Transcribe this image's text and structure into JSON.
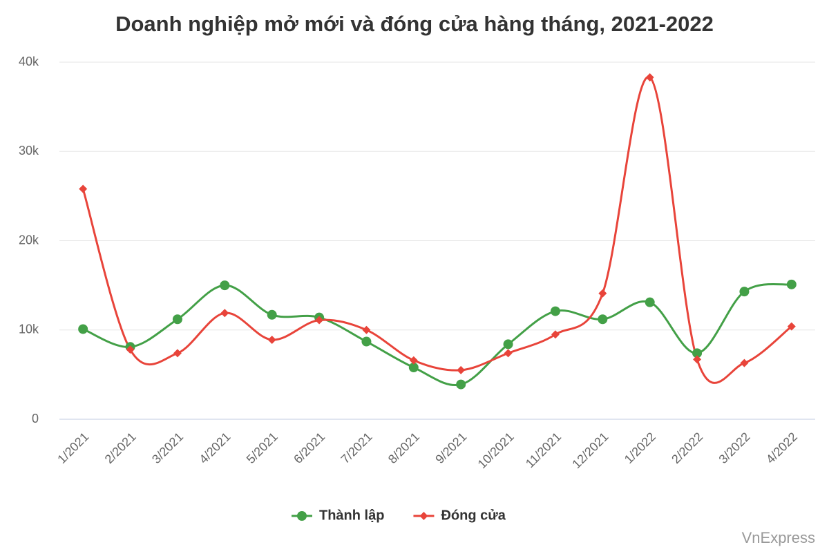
{
  "chart_data": {
    "type": "line",
    "title": "Doanh nghiệp mở mới và đóng cửa hàng tháng, 2021-2022",
    "categories": [
      "1/2021",
      "2/2021",
      "3/2021",
      "4/2021",
      "5/2021",
      "6/2021",
      "7/2021",
      "8/2021",
      "9/2021",
      "10/2021",
      "11/2021",
      "12/2021",
      "1/2022",
      "2/2022",
      "3/2022",
      "4/2022"
    ],
    "series": [
      {
        "name": "Thành lập",
        "color": "#43a047",
        "marker": "circle",
        "values": [
          10100,
          8100,
          11200,
          15000,
          11700,
          11400,
          8700,
          5800,
          3900,
          8400,
          12100,
          11200,
          13100,
          7400,
          14300,
          15100
        ]
      },
      {
        "name": "Đóng cửa",
        "color": "#e8443a",
        "marker": "diamond",
        "values": [
          25800,
          7800,
          7400,
          11900,
          8900,
          11100,
          10000,
          6600,
          5500,
          7400,
          9500,
          14100,
          38300,
          6700,
          6300,
          10400
        ]
      }
    ],
    "ylim": [
      0,
      40000
    ],
    "yticks": [
      0,
      {
        "value": 10000,
        "label": "10k"
      },
      {
        "value": 20000,
        "label": "20k"
      },
      {
        "value": 30000,
        "label": "30k"
      },
      {
        "value": 40000,
        "label": "40k"
      }
    ],
    "grid": true,
    "smooth": true,
    "legend": "bottom",
    "source": "VnExpress"
  }
}
